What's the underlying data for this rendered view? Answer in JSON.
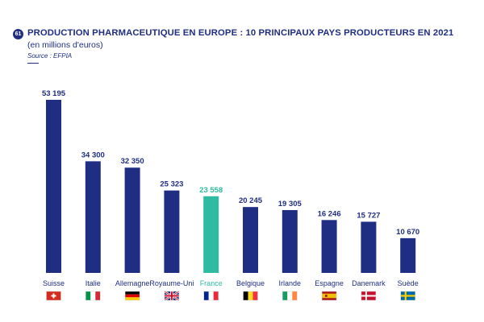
{
  "header": {
    "badge": "61",
    "title": "PRODUCTION PHARMACEUTIQUE EN EUROPE : 10 PRINCIPAUX PAYS PRODUCTEURS EN 2021",
    "subtitle": "(en millions d'euros)",
    "source": "Source : EFPIA"
  },
  "colors": {
    "primary": "#1f2e83",
    "highlight": "#2ebba2"
  },
  "chart_data": {
    "type": "bar",
    "title": "PRODUCTION PHARMACEUTIQUE EN EUROPE : 10 PRINCIPAUX PAYS PRODUCTEURS EN 2021",
    "subtitle": "(en millions d'euros)",
    "categories": [
      "Suisse",
      "Italie",
      "Allemagne",
      "Royaume-Uni",
      "France",
      "Belgique",
      "Irlande",
      "Espagne",
      "Danemark",
      "Suède"
    ],
    "values": [
      53195,
      34300,
      32350,
      25323,
      23558,
      20245,
      19305,
      16246,
      15727,
      10670
    ],
    "value_labels": [
      "53 195",
      "34 300",
      "32 350",
      "25 323",
      "23 558",
      "20 245",
      "19 305",
      "16 246",
      "15 727",
      "10 670"
    ],
    "highlight_category": "France",
    "flags": [
      "switzerland-flag",
      "italy-flag",
      "germany-flag",
      "uk-flag",
      "france-flag",
      "belgium-flag",
      "ireland-flag",
      "spain-flag",
      "denmark-flag",
      "sweden-flag"
    ],
    "ylim": [
      0,
      53195
    ],
    "grid": false,
    "legend": "none"
  }
}
